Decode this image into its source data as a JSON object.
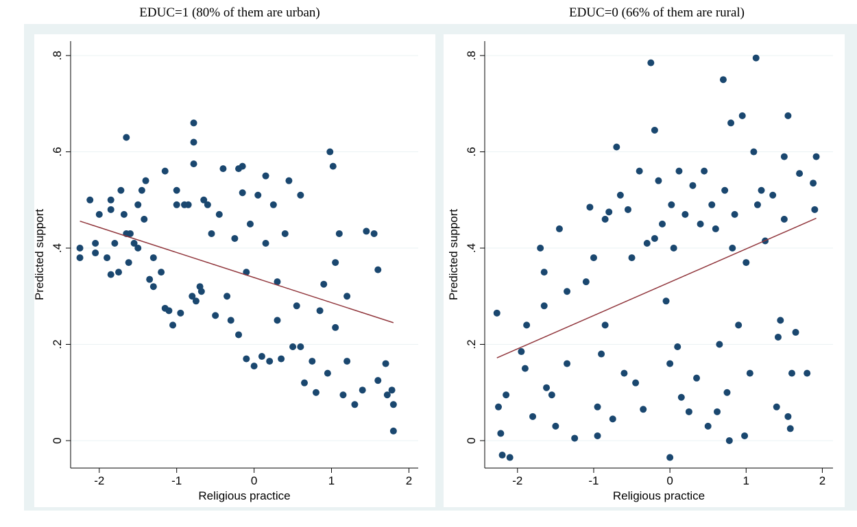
{
  "chart_data": [
    {
      "type": "scatter",
      "title": "EDUC=1 (80% of them are urban)",
      "x_label": "Religious practice",
      "y_label": "Predicted support",
      "xlim": [
        -2.37,
        2.12
      ],
      "ylim": [
        -0.057,
        0.83
      ],
      "xticks": [
        -2,
        -1,
        0,
        1,
        2
      ],
      "yticks": [
        0,
        {
          "value": 0.2,
          "label": ".2"
        },
        {
          "value": 0.4,
          "label": ".4"
        },
        {
          "value": 0.6,
          "label": ".6"
        },
        {
          "value": 0.8,
          "label": ".8"
        }
      ],
      "grid": true,
      "series": [
        {
          "type": "scatter",
          "color": "#1a476f",
          "x": [
            -2.25,
            -2.25,
            -2.12,
            -2.05,
            -2.05,
            -2.0,
            -1.9,
            -1.85,
            -1.85,
            -1.85,
            -1.8,
            -1.75,
            -1.72,
            -1.68,
            -1.65,
            -1.65,
            -1.62,
            -1.6,
            -1.55,
            -1.5,
            -1.5,
            -1.45,
            -1.42,
            -1.4,
            -1.35,
            -1.3,
            -1.3,
            -1.2,
            -1.15,
            -1.15,
            -1.1,
            -1.05,
            -1.0,
            -1.0,
            -0.95,
            -0.9,
            -0.85,
            -0.8,
            -0.78,
            -0.78,
            -0.78,
            -0.75,
            -0.7,
            -0.68,
            -0.65,
            -0.6,
            -0.55,
            -0.5,
            -0.45,
            -0.4,
            -0.35,
            -0.3,
            -0.25,
            -0.2,
            -0.2,
            -0.15,
            -0.15,
            -0.1,
            -0.05,
            -0.1,
            0.0,
            0.05,
            0.1,
            0.15,
            0.15,
            0.2,
            0.25,
            0.3,
            0.3,
            0.35,
            0.4,
            0.45,
            0.5,
            0.55,
            0.6,
            0.6,
            0.65,
            0.75,
            0.8,
            0.85,
            0.9,
            0.95,
            0.98,
            1.02,
            1.05,
            1.05,
            1.1,
            1.15,
            1.2,
            1.2,
            1.3,
            1.4,
            1.45,
            1.55,
            1.6,
            1.6,
            1.7,
            1.72,
            1.78,
            1.8,
            1.8
          ],
          "values": [
            0.4,
            0.38,
            0.5,
            0.41,
            0.39,
            0.47,
            0.38,
            0.5,
            0.48,
            0.345,
            0.41,
            0.35,
            0.52,
            0.47,
            0.63,
            0.43,
            0.37,
            0.43,
            0.41,
            0.4,
            0.49,
            0.52,
            0.46,
            0.54,
            0.335,
            0.32,
            0.38,
            0.35,
            0.56,
            0.275,
            0.27,
            0.24,
            0.52,
            0.49,
            0.265,
            0.49,
            0.49,
            0.3,
            0.66,
            0.62,
            0.575,
            0.29,
            0.32,
            0.31,
            0.5,
            0.49,
            0.43,
            0.26,
            0.47,
            0.565,
            0.3,
            0.25,
            0.42,
            0.565,
            0.22,
            0.57,
            0.515,
            0.35,
            0.45,
            0.17,
            0.155,
            0.51,
            0.175,
            0.41,
            0.55,
            0.165,
            0.49,
            0.33,
            0.25,
            0.17,
            0.43,
            0.54,
            0.195,
            0.28,
            0.51,
            0.195,
            0.12,
            0.165,
            0.1,
            0.27,
            0.325,
            0.14,
            0.6,
            0.57,
            0.235,
            0.37,
            0.43,
            0.095,
            0.3,
            0.165,
            0.075,
            0.105,
            0.435,
            0.43,
            0.125,
            0.355,
            0.16,
            0.095,
            0.105,
            0.075,
            0.02
          ]
        },
        {
          "type": "line",
          "color": "#90353b",
          "x": [
            -2.25,
            1.8
          ],
          "values": [
            0.456,
            0.245
          ]
        }
      ]
    },
    {
      "type": "scatter",
      "title": "EDUC=0 (66% of them are rural)",
      "x_label": "Religious practice",
      "y_label": "Predicted support",
      "xlim": [
        -2.43,
        2.14
      ],
      "ylim": [
        -0.057,
        0.83
      ],
      "xticks": [
        -2,
        -1,
        0,
        1,
        2
      ],
      "yticks": [
        0,
        {
          "value": 0.2,
          "label": ".2"
        },
        {
          "value": 0.4,
          "label": ".4"
        },
        {
          "value": 0.6,
          "label": ".6"
        },
        {
          "value": 0.8,
          "label": ".8"
        }
      ],
      "grid": true,
      "series": [
        {
          "type": "scatter",
          "color": "#1a476f",
          "x": [
            -2.27,
            -2.25,
            -2.22,
            -2.2,
            -2.15,
            -2.1,
            -1.95,
            -1.9,
            -1.88,
            -1.8,
            -1.7,
            -1.65,
            -1.65,
            -1.62,
            -1.55,
            -1.5,
            -1.45,
            -1.35,
            -1.35,
            -1.25,
            -1.1,
            -1.05,
            -1.0,
            -0.95,
            -0.95,
            -0.9,
            -0.85,
            -0.85,
            -0.8,
            -0.75,
            -0.7,
            -0.65,
            -0.6,
            -0.55,
            -0.5,
            -0.45,
            -0.4,
            -0.35,
            -0.3,
            -0.25,
            -0.2,
            -0.2,
            -0.15,
            -0.1,
            -0.05,
            0.0,
            0.0,
            0.02,
            0.05,
            0.1,
            0.12,
            0.15,
            0.2,
            0.25,
            0.3,
            0.35,
            0.4,
            0.45,
            0.5,
            0.55,
            0.6,
            0.62,
            0.65,
            0.7,
            0.72,
            0.75,
            0.78,
            0.8,
            0.82,
            0.85,
            0.9,
            0.95,
            0.98,
            1.0,
            1.05,
            1.1,
            1.13,
            1.15,
            1.2,
            1.25,
            1.35,
            1.4,
            1.42,
            1.45,
            1.5,
            1.5,
            1.55,
            1.55,
            1.58,
            1.6,
            1.65,
            1.7,
            1.8,
            1.88,
            1.9,
            1.92
          ],
          "values": [
            0.265,
            0.07,
            0.015,
            -0.03,
            0.095,
            -0.035,
            0.185,
            0.15,
            0.24,
            0.05,
            0.4,
            0.35,
            0.28,
            0.11,
            0.095,
            0.03,
            0.44,
            0.31,
            0.16,
            0.005,
            0.33,
            0.485,
            0.38,
            0.07,
            0.01,
            0.18,
            0.24,
            0.46,
            0.475,
            0.045,
            0.61,
            0.51,
            0.14,
            0.48,
            0.38,
            0.12,
            0.56,
            0.065,
            0.41,
            0.785,
            0.645,
            0.42,
            0.54,
            0.45,
            0.29,
            0.16,
            -0.035,
            0.49,
            0.4,
            0.195,
            0.56,
            0.09,
            0.47,
            0.06,
            0.53,
            0.13,
            0.45,
            0.56,
            0.03,
            0.49,
            0.44,
            0.06,
            0.2,
            0.75,
            0.52,
            0.1,
            0.0,
            0.66,
            0.4,
            0.47,
            0.24,
            0.675,
            0.01,
            0.37,
            0.14,
            0.6,
            0.795,
            0.49,
            0.52,
            0.415,
            0.51,
            0.07,
            0.215,
            0.25,
            0.46,
            0.59,
            0.675,
            0.05,
            0.025,
            0.14,
            0.225,
            0.555,
            0.14,
            0.535,
            0.48,
            0.59
          ]
        },
        {
          "type": "line",
          "color": "#90353b",
          "x": [
            -2.27,
            1.92
          ],
          "values": [
            0.172,
            0.462
          ]
        }
      ]
    }
  ]
}
